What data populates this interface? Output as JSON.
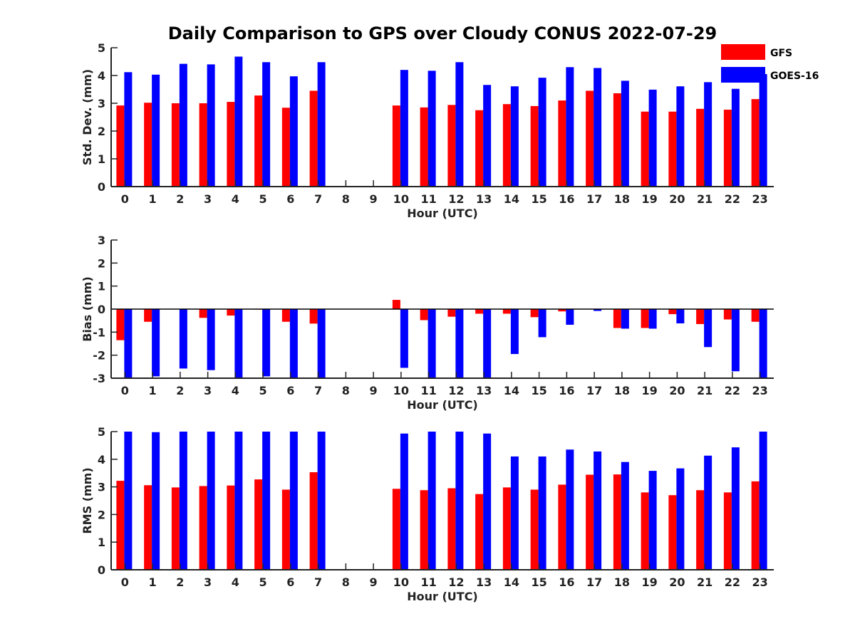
{
  "title": "Daily Comparison to GPS over Cloudy CONUS 2022-07-29",
  "legend": {
    "placement": "top-right",
    "entries": [
      {
        "name": "GFS",
        "color": "#ff0000"
      },
      {
        "name": "GOES-16",
        "color": "#0000ff"
      }
    ]
  },
  "chart_data": [
    {
      "type": "bar",
      "xlabel": "Hour (UTC)",
      "ylabel": "Std. Dev. (mm)",
      "ylim": [
        0,
        5
      ],
      "yticks": [
        0,
        1,
        2,
        3,
        4,
        5
      ],
      "categories": [
        "0",
        "1",
        "2",
        "3",
        "4",
        "5",
        "6",
        "7",
        "8",
        "9",
        "10",
        "11",
        "12",
        "13",
        "14",
        "15",
        "16",
        "17",
        "18",
        "19",
        "20",
        "21",
        "22",
        "23"
      ],
      "series": [
        {
          "name": "GFS",
          "color": "#ff0000",
          "values": [
            2.92,
            3.02,
            3.0,
            3.0,
            3.05,
            3.28,
            2.84,
            3.45,
            null,
            null,
            2.92,
            2.85,
            2.94,
            2.75,
            2.97,
            2.9,
            3.1,
            3.45,
            3.36,
            2.7,
            2.7,
            2.8,
            2.77,
            3.15
          ]
        },
        {
          "name": "GOES-16",
          "color": "#0000ff",
          "values": [
            4.12,
            4.03,
            4.42,
            4.4,
            4.68,
            4.48,
            3.97,
            4.48,
            null,
            null,
            4.2,
            4.17,
            4.48,
            3.66,
            3.61,
            3.92,
            4.3,
            4.27,
            3.81,
            3.49,
            3.61,
            3.76,
            3.52,
            4.05
          ]
        }
      ]
    },
    {
      "type": "bar",
      "xlabel": "Hour (UTC)",
      "ylabel": "Bias (mm)",
      "ylim": [
        -3,
        3
      ],
      "yticks": [
        -3,
        -2,
        -1,
        0,
        1,
        2,
        3
      ],
      "categories": [
        "0",
        "1",
        "2",
        "3",
        "4",
        "5",
        "6",
        "7",
        "8",
        "9",
        "10",
        "11",
        "12",
        "13",
        "14",
        "15",
        "16",
        "17",
        "18",
        "19",
        "20",
        "21",
        "22",
        "23"
      ],
      "series": [
        {
          "name": "GFS",
          "color": "#ff0000",
          "values": [
            -1.35,
            -0.55,
            0.0,
            -0.38,
            -0.28,
            -0.02,
            -0.55,
            -0.63,
            null,
            null,
            0.4,
            -0.48,
            -0.33,
            -0.2,
            -0.2,
            -0.35,
            -0.1,
            0.0,
            -0.82,
            -0.82,
            -0.22,
            -0.65,
            -0.45,
            -0.55
          ]
        },
        {
          "name": "GOES-16",
          "color": "#0000ff",
          "values": [
            -3.0,
            -2.92,
            -2.58,
            -2.65,
            -3.0,
            -2.92,
            -3.0,
            -3.0,
            null,
            null,
            -2.55,
            -3.0,
            -3.0,
            -3.0,
            -1.95,
            -1.22,
            -0.68,
            -0.08,
            -0.85,
            -0.85,
            -0.62,
            -1.65,
            -2.7,
            -3.0
          ]
        }
      ]
    },
    {
      "type": "bar",
      "xlabel": "Hour (UTC)",
      "ylabel": "RMS (mm)",
      "ylim": [
        0,
        5
      ],
      "yticks": [
        0,
        1,
        2,
        3,
        4,
        5
      ],
      "categories": [
        "0",
        "1",
        "2",
        "3",
        "4",
        "5",
        "6",
        "7",
        "8",
        "9",
        "10",
        "11",
        "12",
        "13",
        "14",
        "15",
        "16",
        "17",
        "18",
        "19",
        "20",
        "21",
        "22",
        "23"
      ],
      "series": [
        {
          "name": "GFS",
          "color": "#ff0000",
          "values": [
            3.22,
            3.06,
            2.98,
            3.03,
            3.05,
            3.27,
            2.9,
            3.53,
            null,
            null,
            2.93,
            2.88,
            2.95,
            2.74,
            2.98,
            2.9,
            3.08,
            3.44,
            3.45,
            2.8,
            2.7,
            2.88,
            2.8,
            3.2
          ]
        },
        {
          "name": "GOES-16",
          "color": "#0000ff",
          "values": [
            5.0,
            4.98,
            5.0,
            5.0,
            5.0,
            5.0,
            5.0,
            5.0,
            null,
            null,
            4.93,
            5.0,
            5.0,
            4.93,
            4.1,
            4.1,
            4.35,
            4.28,
            3.9,
            3.58,
            3.67,
            4.13,
            4.43,
            5.0
          ]
        }
      ]
    }
  ]
}
